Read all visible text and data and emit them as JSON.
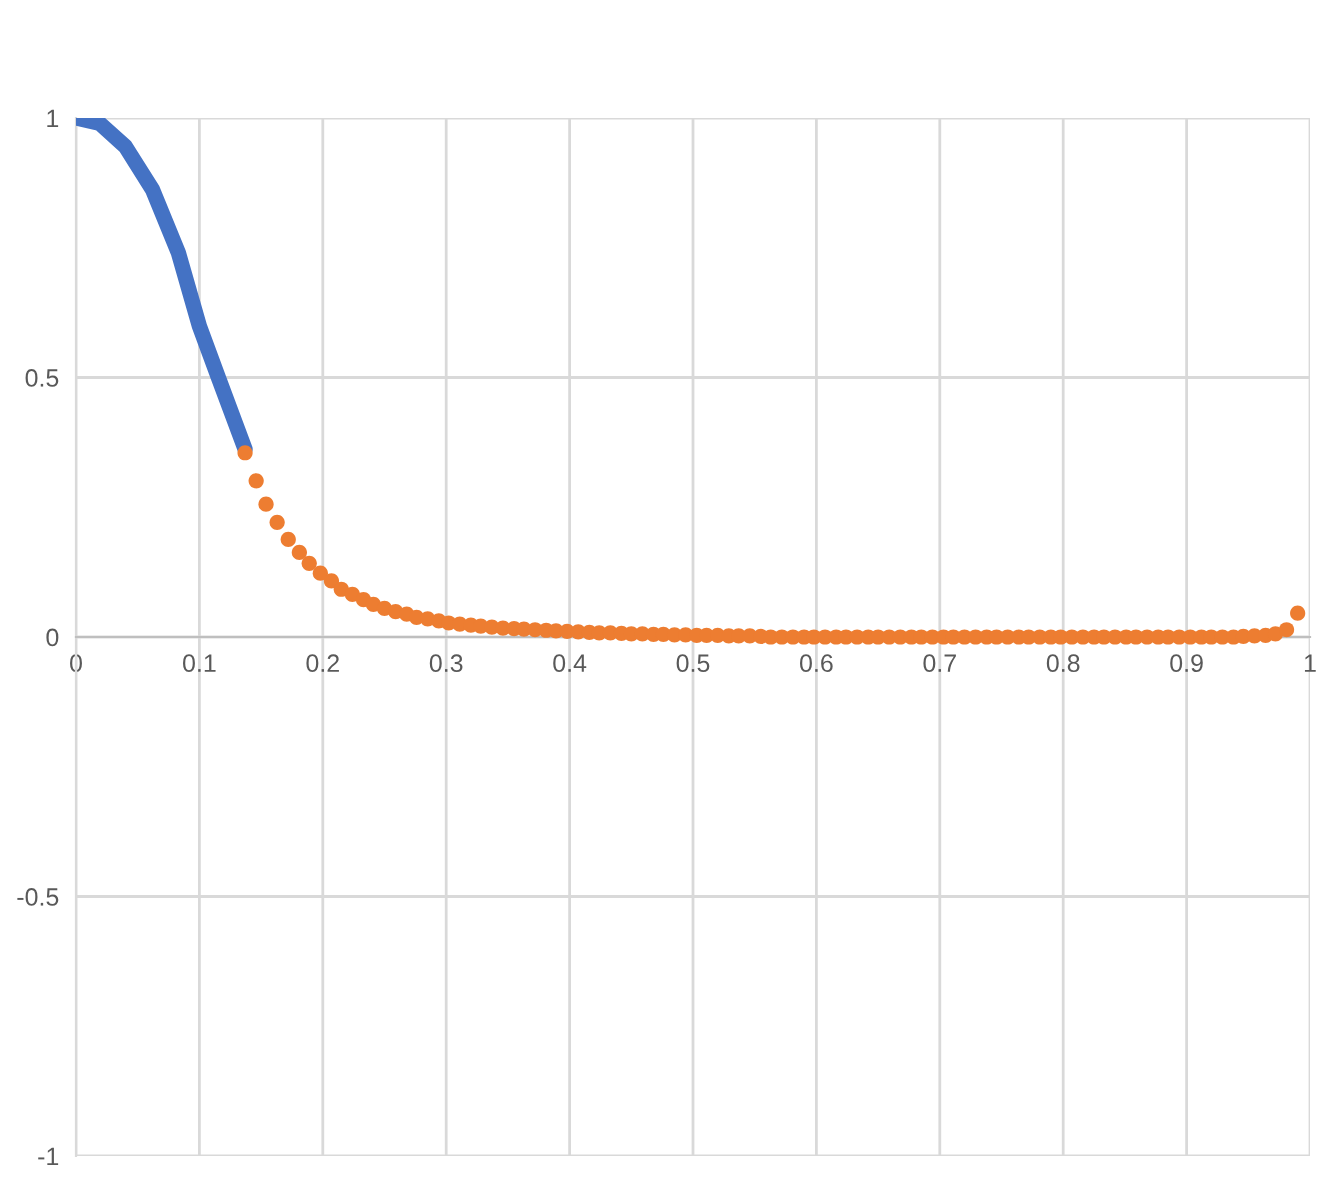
{
  "chart_data": {
    "type": "line",
    "xlim": [
      0,
      1
    ],
    "ylim": [
      -1,
      1
    ],
    "xticks": [
      0,
      0.1,
      0.2,
      0.3,
      0.4,
      0.5,
      0.6,
      0.7,
      0.8,
      0.9,
      1
    ],
    "yticks": [
      -1,
      -0.5,
      0,
      0.5,
      1
    ],
    "grid": true,
    "legend": false,
    "series": [
      {
        "color": "#4472c4",
        "marker": "none",
        "line_style": "solid",
        "x": [
          0,
          0.019,
          0.04,
          0.062,
          0.083,
          0.1,
          0.116,
          0.137
        ],
        "values": [
          1,
          0.99,
          0.945,
          0.862,
          0.74,
          0.599,
          0.496,
          0.362
        ]
      },
      {
        "type": "scatter",
        "color": "#ed7d31",
        "marker": "circle",
        "x": [
          0.137,
          0.146,
          0.154,
          0.163,
          0.172,
          0.181,
          0.189,
          0.198,
          0.207,
          0.215,
          0.224,
          0.233,
          0.241,
          0.25,
          0.259,
          0.268,
          0.276,
          0.285,
          0.294,
          0.302,
          0.311,
          0.32,
          0.328,
          0.337,
          0.346,
          0.355,
          0.363,
          0.372,
          0.381,
          0.389,
          0.398,
          0.407,
          0.416,
          0.424,
          0.433,
          0.442,
          0.45,
          0.459,
          0.468,
          0.476,
          0.485,
          0.494,
          0.503,
          0.511,
          0.52,
          0.529,
          0.537,
          0.546,
          0.555,
          0.563,
          0.572,
          0.581,
          0.59,
          0.598,
          0.607,
          0.616,
          0.624,
          0.633,
          0.642,
          0.65,
          0.659,
          0.668,
          0.677,
          0.685,
          0.694,
          0.703,
          0.711,
          0.72,
          0.729,
          0.738,
          0.746,
          0.755,
          0.764,
          0.772,
          0.781,
          0.79,
          0.798,
          0.807,
          0.816,
          0.825,
          0.833,
          0.842,
          0.851,
          0.859,
          0.868,
          0.877,
          0.885,
          0.894,
          0.903,
          0.912,
          0.92,
          0.929,
          0.938,
          0.946,
          0.955,
          0.964,
          0.972,
          0.981,
          0.99
        ],
        "values": [
          0.355,
          0.301,
          0.256,
          0.221,
          0.188,
          0.163,
          0.142,
          0.123,
          0.108,
          0.092,
          0.082,
          0.072,
          0.063,
          0.055,
          0.049,
          0.044,
          0.038,
          0.035,
          0.031,
          0.027,
          0.025,
          0.023,
          0.021,
          0.019,
          0.017,
          0.016,
          0.015,
          0.014,
          0.013,
          0.012,
          0.011,
          0.01,
          0.009,
          0.008,
          0.008,
          0.007,
          0.006,
          0.006,
          0.005,
          0.005,
          0.004,
          0.004,
          0.003,
          0.003,
          0.003,
          0.002,
          0.002,
          0.002,
          0.001,
          0,
          0,
          0,
          0,
          0,
          0,
          0,
          0,
          0,
          0,
          0,
          0,
          0,
          0,
          0,
          0,
          0,
          0,
          0,
          0,
          0,
          0,
          0,
          0,
          0,
          0,
          0,
          0,
          0,
          0,
          0,
          0,
          0,
          0,
          0,
          0,
          0,
          0,
          0,
          0,
          0,
          0,
          0,
          0,
          0.001,
          0.002,
          0.003,
          0.006,
          0.014,
          0.046
        ]
      }
    ]
  }
}
